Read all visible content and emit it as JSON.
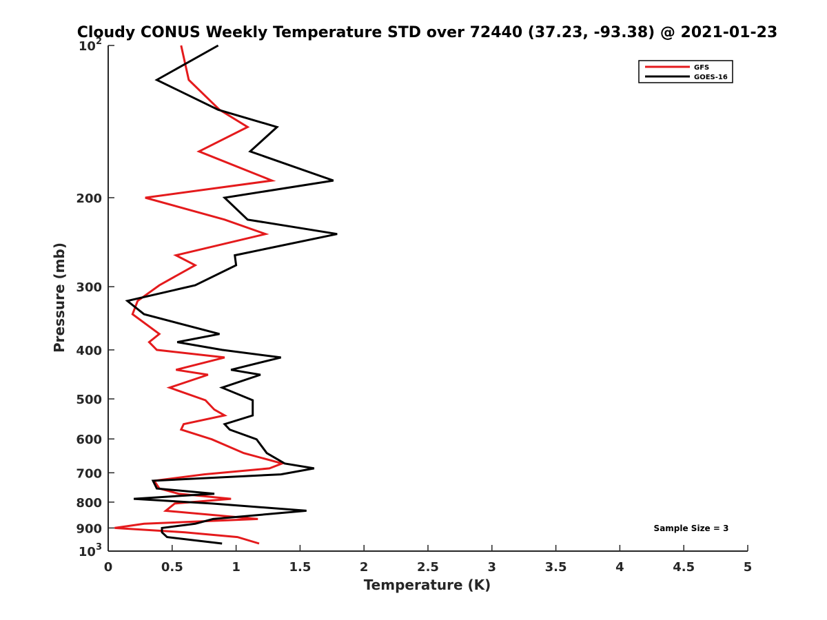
{
  "chart_data": {
    "type": "line",
    "title": "Cloudy CONUS Weekly Temperature STD over 72440 (37.23, -93.38) @ 2021-01-23",
    "xlabel": "Temperature (K)",
    "ylabel": "Pressure (mb)",
    "xlim": [
      0,
      5
    ],
    "ylim": [
      100,
      1000
    ],
    "yscale": "log",
    "y_reversed": true,
    "grid": false,
    "legend_position": "top-right",
    "x_ticks": [
      {
        "value": 0,
        "label": "0"
      },
      {
        "value": 0.5,
        "label": "0.5"
      },
      {
        "value": 1,
        "label": "1"
      },
      {
        "value": 1.5,
        "label": "1.5"
      },
      {
        "value": 2,
        "label": "2"
      },
      {
        "value": 2.5,
        "label": "2.5"
      },
      {
        "value": 3,
        "label": "3"
      },
      {
        "value": 3.5,
        "label": "3.5"
      },
      {
        "value": 4,
        "label": "4"
      },
      {
        "value": 4.5,
        "label": "4.5"
      },
      {
        "value": 5,
        "label": "5"
      }
    ],
    "y_ticks": [
      {
        "value": 100,
        "label": "10",
        "sup": "2"
      },
      {
        "value": 200,
        "label": "200",
        "sup": ""
      },
      {
        "value": 300,
        "label": "300",
        "sup": ""
      },
      {
        "value": 400,
        "label": "400",
        "sup": ""
      },
      {
        "value": 500,
        "label": "500",
        "sup": ""
      },
      {
        "value": 600,
        "label": "600",
        "sup": ""
      },
      {
        "value": 700,
        "label": "700",
        "sup": ""
      },
      {
        "value": 800,
        "label": "800",
        "sup": ""
      },
      {
        "value": 900,
        "label": "900",
        "sup": ""
      },
      {
        "value": 1000,
        "label": "10",
        "sup": "3"
      }
    ],
    "series": [
      {
        "name": "GFS",
        "color": "#e41a1c",
        "points": [
          [
            0.57,
            100
          ],
          [
            0.63,
            117
          ],
          [
            0.87,
            134
          ],
          [
            1.09,
            145
          ],
          [
            0.71,
            162
          ],
          [
            1.28,
            185
          ],
          [
            0.29,
            200
          ],
          [
            0.91,
            221
          ],
          [
            1.23,
            236
          ],
          [
            0.53,
            260
          ],
          [
            0.68,
            272
          ],
          [
            0.4,
            298
          ],
          [
            0.23,
            320
          ],
          [
            0.19,
            340
          ],
          [
            0.4,
            372
          ],
          [
            0.32,
            386
          ],
          [
            0.38,
            400
          ],
          [
            0.91,
            414
          ],
          [
            0.53,
            438
          ],
          [
            0.78,
            448
          ],
          [
            0.48,
            475
          ],
          [
            0.76,
            503
          ],
          [
            0.83,
            525
          ],
          [
            0.91,
            539
          ],
          [
            0.59,
            561
          ],
          [
            0.57,
            575
          ],
          [
            0.81,
            601
          ],
          [
            1.06,
            640
          ],
          [
            1.36,
            671
          ],
          [
            1.26,
            686
          ],
          [
            0.75,
            705
          ],
          [
            0.36,
            726
          ],
          [
            0.4,
            752
          ],
          [
            0.55,
            770
          ],
          [
            0.96,
            788
          ],
          [
            0.52,
            805
          ],
          [
            0.45,
            832
          ],
          [
            1.17,
            864
          ],
          [
            0.28,
            883
          ],
          [
            0.05,
            900
          ],
          [
            0.6,
            918
          ],
          [
            1.01,
            938
          ],
          [
            1.18,
            966
          ]
        ]
      },
      {
        "name": "GOES-16",
        "color": "#000000",
        "points": [
          [
            0.86,
            100
          ],
          [
            0.38,
            117
          ],
          [
            0.86,
            134
          ],
          [
            1.32,
            145
          ],
          [
            1.11,
            162
          ],
          [
            1.76,
            185
          ],
          [
            0.91,
            200
          ],
          [
            1.09,
            221
          ],
          [
            1.79,
            236
          ],
          [
            0.99,
            260
          ],
          [
            1.0,
            272
          ],
          [
            0.68,
            298
          ],
          [
            0.15,
            320
          ],
          [
            0.28,
            340
          ],
          [
            0.87,
            372
          ],
          [
            0.54,
            386
          ],
          [
            0.89,
            400
          ],
          [
            1.35,
            414
          ],
          [
            0.96,
            438
          ],
          [
            1.19,
            448
          ],
          [
            0.89,
            475
          ],
          [
            1.13,
            503
          ],
          [
            1.13,
            525
          ],
          [
            1.13,
            539
          ],
          [
            0.91,
            561
          ],
          [
            0.95,
            575
          ],
          [
            1.16,
            601
          ],
          [
            1.24,
            640
          ],
          [
            1.38,
            671
          ],
          [
            1.61,
            686
          ],
          [
            1.35,
            705
          ],
          [
            0.35,
            726
          ],
          [
            0.38,
            752
          ],
          [
            0.83,
            770
          ],
          [
            0.2,
            788
          ],
          [
            0.81,
            805
          ],
          [
            1.55,
            832
          ],
          [
            0.82,
            864
          ],
          [
            0.68,
            883
          ],
          [
            0.42,
            900
          ],
          [
            0.42,
            918
          ],
          [
            0.46,
            938
          ],
          [
            0.89,
            966
          ]
        ]
      }
    ],
    "annotation": "Sample Size = 3"
  }
}
